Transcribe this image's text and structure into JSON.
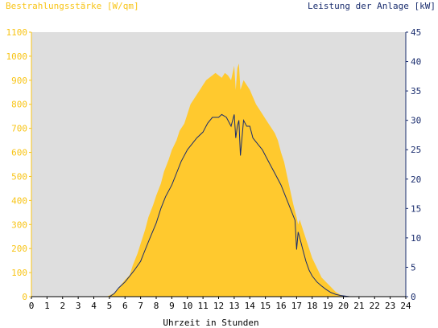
{
  "chart_data": {
    "type": "area",
    "left_axis_label": "Bestrahlungsstärke [W/qm]",
    "right_axis_label": "Leistung der Anlage [kW]",
    "xlabel": "Uhrzeit in Stunden",
    "xlim": [
      0,
      24
    ],
    "ylim_left": [
      0,
      1100
    ],
    "ylim_right": [
      0,
      45
    ],
    "x_ticks": [
      0,
      1,
      2,
      3,
      4,
      5,
      6,
      7,
      8,
      9,
      10,
      11,
      12,
      13,
      14,
      15,
      16,
      17,
      18,
      19,
      20,
      21,
      22,
      23,
      24
    ],
    "y_left_ticks": [
      0,
      100,
      200,
      300,
      400,
      500,
      600,
      700,
      800,
      900,
      1000,
      1100
    ],
    "y_right_ticks": [
      0,
      5,
      10,
      15,
      20,
      25,
      30,
      35,
      40,
      45
    ],
    "grid": false,
    "colors": {
      "plot_background": "#dedede",
      "irradiance_fill": "#ffc92e",
      "power_line": "#1a2d6e",
      "left_axis": "#f8c416",
      "right_axis": "#1a2d6e"
    },
    "series": [
      {
        "name": "Bestrahlungsstärke [W/qm]",
        "axis": "left",
        "style": "area",
        "x": [
          0,
          4.8,
          5.0,
          5.3,
          5.5,
          5.7,
          6.0,
          6.3,
          6.5,
          6.8,
          7.0,
          7.3,
          7.5,
          7.8,
          8.0,
          8.3,
          8.5,
          8.8,
          9.0,
          9.3,
          9.5,
          9.8,
          10.0,
          10.2,
          10.4,
          10.6,
          10.8,
          11.0,
          11.2,
          11.4,
          11.6,
          11.8,
          12.0,
          12.2,
          12.4,
          12.6,
          12.8,
          13.0,
          13.1,
          13.2,
          13.3,
          13.4,
          13.5,
          13.6,
          13.8,
          14.0,
          14.2,
          14.4,
          14.6,
          14.8,
          15.0,
          15.2,
          15.4,
          15.6,
          15.8,
          16.0,
          16.2,
          16.4,
          16.6,
          16.8,
          17.0,
          17.1,
          17.2,
          17.4,
          17.6,
          17.8,
          18.0,
          18.3,
          18.6,
          18.9,
          19.2,
          19.5,
          19.8,
          20.1,
          20.4,
          20.7,
          21.0,
          24
        ],
        "y": [
          0,
          0,
          5,
          15,
          30,
          45,
          70,
          90,
          130,
          180,
          220,
          280,
          330,
          380,
          420,
          470,
          520,
          570,
          610,
          650,
          690,
          720,
          760,
          800,
          820,
          840,
          860,
          880,
          900,
          910,
          920,
          930,
          920,
          910,
          930,
          920,
          900,
          960,
          860,
          950,
          970,
          860,
          880,
          900,
          880,
          860,
          830,
          800,
          780,
          760,
          740,
          720,
          700,
          680,
          650,
          600,
          560,
          500,
          440,
          380,
          330,
          300,
          320,
          280,
          240,
          200,
          160,
          120,
          80,
          60,
          40,
          20,
          8,
          3,
          1,
          0,
          0,
          0
        ]
      },
      {
        "name": "Leistung der Anlage [kW]",
        "axis": "right",
        "style": "line",
        "x": [
          0,
          5.0,
          5.3,
          5.6,
          5.8,
          6.0,
          6.3,
          6.6,
          7.0,
          7.3,
          7.6,
          8.0,
          8.3,
          8.6,
          9.0,
          9.3,
          9.6,
          10.0,
          10.3,
          10.6,
          11.0,
          11.3,
          11.6,
          12.0,
          12.2,
          12.5,
          12.8,
          13.0,
          13.1,
          13.2,
          13.3,
          13.4,
          13.6,
          13.8,
          14.0,
          14.2,
          14.5,
          14.8,
          15.0,
          15.3,
          15.6,
          16.0,
          16.3,
          16.6,
          16.9,
          17.0,
          17.1,
          17.2,
          17.4,
          17.6,
          17.8,
          18.0,
          18.3,
          18.6,
          18.9,
          19.2,
          19.5,
          19.8,
          20.1,
          20.4,
          24
        ],
        "y": [
          0,
          0,
          0.5,
          1.5,
          2,
          2.5,
          3.5,
          4.5,
          6,
          8,
          10,
          12.5,
          15,
          17,
          19,
          21,
          23,
          25,
          26,
          27,
          28,
          29.5,
          30.5,
          30.5,
          31,
          30.5,
          29,
          31,
          27,
          29,
          30,
          24,
          30,
          29,
          29,
          27,
          26,
          25,
          24,
          22.5,
          21,
          19,
          17,
          15,
          13,
          8,
          11,
          10,
          8,
          6,
          4.5,
          3.5,
          2.5,
          1.8,
          1.2,
          0.7,
          0.4,
          0.2,
          0.1,
          0,
          0
        ]
      }
    ]
  }
}
